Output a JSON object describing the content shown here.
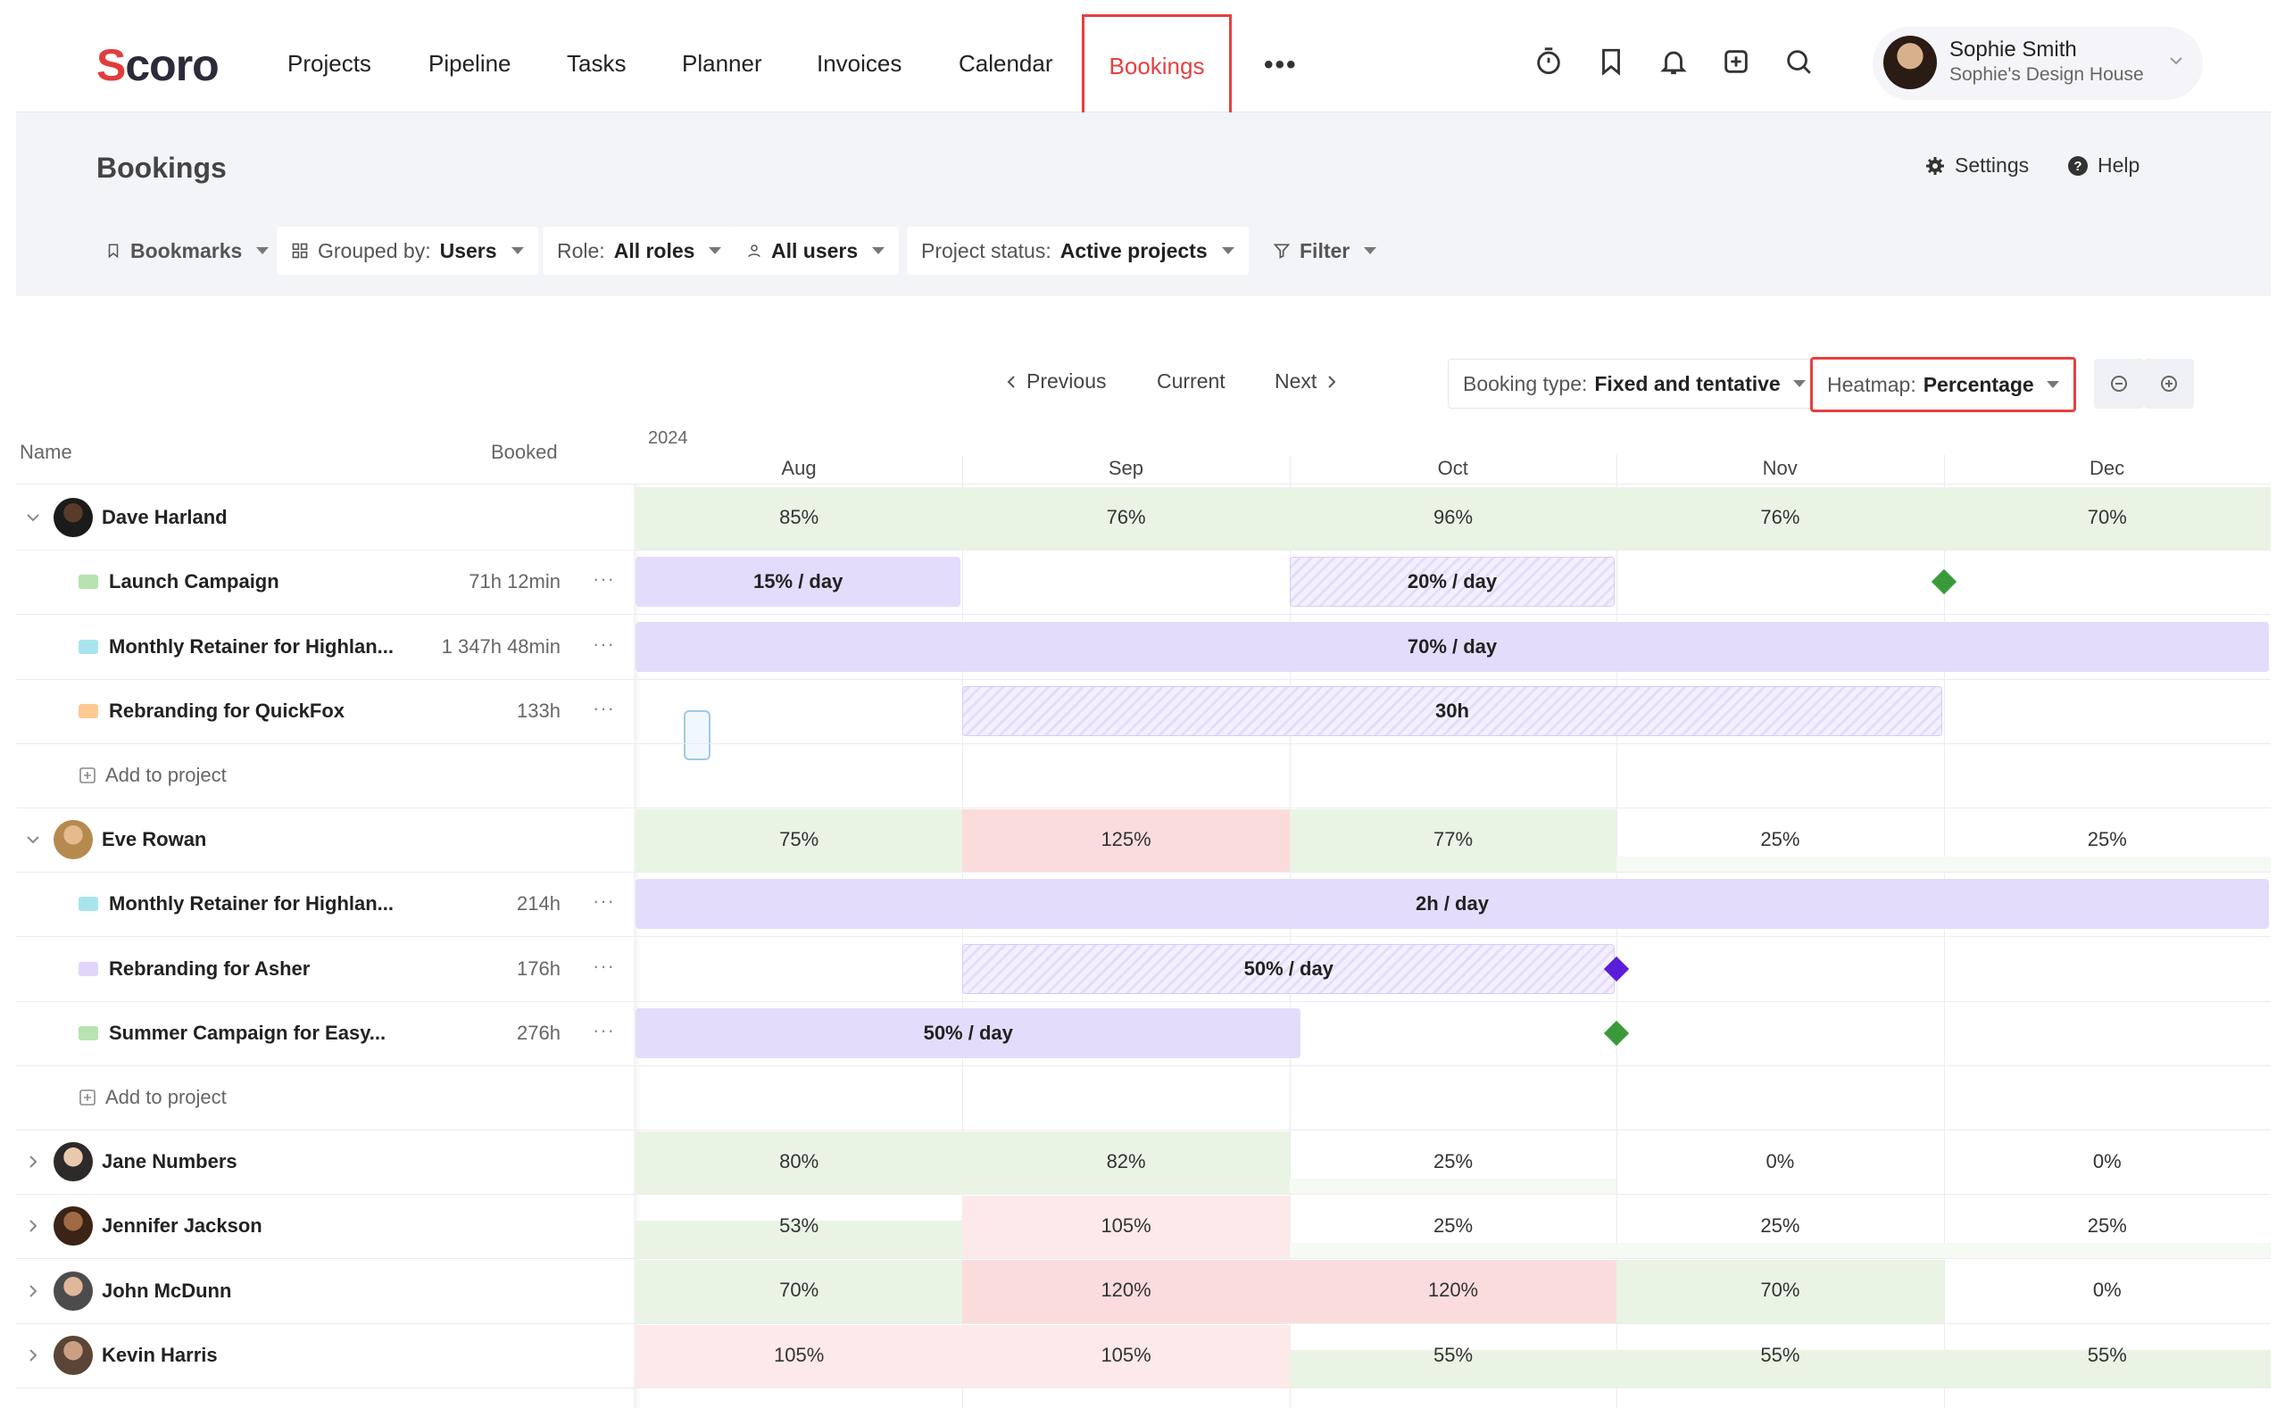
{
  "app": {
    "logo_text": "Scoro",
    "logo_first": "S",
    "logo_rest": "coro"
  },
  "nav": {
    "items": [
      "Projects",
      "Pipeline",
      "Tasks",
      "Planner",
      "Invoices",
      "Calendar"
    ],
    "active": "Bookings",
    "more": "•••"
  },
  "top_icons": [
    "timer-icon",
    "bookmark-icon",
    "bell-icon",
    "add-icon",
    "search-icon"
  ],
  "user": {
    "name": "Sophie Smith",
    "org": "Sophie's Design House"
  },
  "page": {
    "title": "Bookings",
    "settings": "Settings",
    "help": "Help"
  },
  "filters": {
    "bookmarks": "Bookmarks",
    "grouped_label": "Grouped by:",
    "grouped_value": "Users",
    "role_label": "Role:",
    "role_value": "All roles",
    "users": "All users",
    "status_label": "Project status:",
    "status_value": "Active projects",
    "filter": "Filter"
  },
  "toolbar": {
    "previous": "Previous",
    "current": "Current",
    "next": "Next",
    "booking_type_label": "Booking type:",
    "booking_type_value": "Fixed and tentative",
    "heatmap_label": "Heatmap:",
    "heatmap_value": "Percentage"
  },
  "grid": {
    "name_header": "Name",
    "booked_header": "Booked",
    "year": "2024",
    "months": [
      "Aug",
      "Sep",
      "Oct",
      "Nov",
      "Dec"
    ]
  },
  "rows": [
    {
      "type": "user",
      "name": "Dave Harland",
      "expanded": true,
      "heat": [
        "85%",
        "76%",
        "96%",
        "76%",
        "70%"
      ]
    },
    {
      "type": "project",
      "name": "Launch Campaign",
      "booked": "71h 12min",
      "color": "#b6e3b0"
    },
    {
      "type": "project",
      "name": "Monthly Retainer for Highlan...",
      "booked": "1 347h 48min",
      "color": "#a9e4ee"
    },
    {
      "type": "project",
      "name": "Rebranding for QuickFox",
      "booked": "133h",
      "color": "#ffc992"
    },
    {
      "type": "add",
      "label": "Add to project"
    },
    {
      "type": "user",
      "name": "Eve Rowan",
      "expanded": true,
      "heat": [
        "75%",
        "125%",
        "77%",
        "25%",
        "25%"
      ]
    },
    {
      "type": "project",
      "name": "Monthly Retainer for Highlan...",
      "booked": "214h",
      "color": "#a9e4ee"
    },
    {
      "type": "project",
      "name": "Rebranding for Asher",
      "booked": "176h",
      "color": "#e1d5fb"
    },
    {
      "type": "project",
      "name": "Summer Campaign for Easy...",
      "booked": "276h",
      "color": "#b6e3b0"
    },
    {
      "type": "add",
      "label": "Add to project"
    },
    {
      "type": "user",
      "name": "Jane Numbers",
      "expanded": false,
      "heat": [
        "80%",
        "82%",
        "25%",
        "0%",
        "0%"
      ]
    },
    {
      "type": "user",
      "name": "Jennifer Jackson",
      "expanded": false,
      "heat": [
        "53%",
        "105%",
        "25%",
        "25%",
        "25%"
      ]
    },
    {
      "type": "user",
      "name": "John McDunn",
      "expanded": false,
      "heat": [
        "70%",
        "120%",
        "120%",
        "70%",
        "0%"
      ]
    },
    {
      "type": "user",
      "name": "Kevin Harris",
      "expanded": false,
      "heat": [
        "105%",
        "105%",
        "55%",
        "55%",
        "55%"
      ]
    }
  ],
  "bars": [
    {
      "row": 1,
      "label": "15% / day",
      "kind": "fixed"
    },
    {
      "row": 1,
      "label": "20% / day",
      "kind": "tent"
    },
    {
      "row": 2,
      "label": "70% / day",
      "kind": "fixed"
    },
    {
      "row": 3,
      "label": "30h",
      "kind": "tent"
    },
    {
      "row": 6,
      "label": "2h / day",
      "kind": "fixed"
    },
    {
      "row": 7,
      "label": "50% / day",
      "kind": "tent"
    },
    {
      "row": 8,
      "label": "50% / day",
      "kind": "fixed"
    }
  ],
  "milestones": [
    {
      "row": 1,
      "color": "#3a9a3a"
    },
    {
      "row": 7,
      "color": "#5a1ed8"
    },
    {
      "row": 8,
      "color": "#3a9a3a"
    }
  ]
}
